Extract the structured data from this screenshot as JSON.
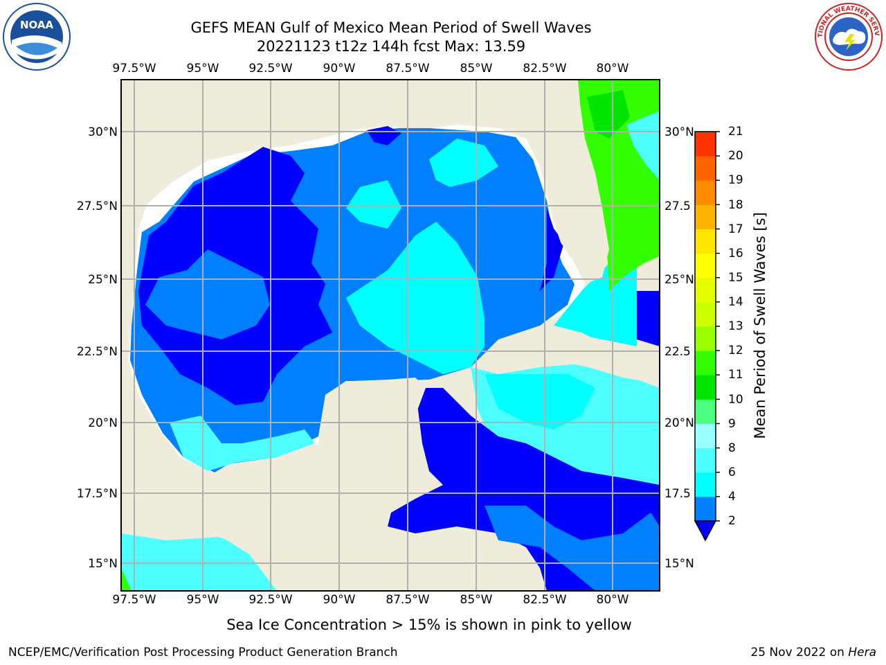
{
  "title": {
    "line1": "GEFS MEAN Gulf of Mexico Mean Period of Swell Waves",
    "line2": "20221123 t12z 144h fcst   Max: 13.59"
  },
  "axes": {
    "longitudes": [
      "97.5°W",
      "95°W",
      "92.5°W",
      "90°W",
      "87.5°W",
      "85°W",
      "82.5°W",
      "80°W"
    ],
    "latitudes_left": [
      "30°N",
      "27.5°N",
      "25°N",
      "22.5°N",
      "20°N",
      "17.5°N",
      "15°N"
    ],
    "latitudes_right": [
      "30°N",
      "27.5",
      "25°N",
      "22.5",
      "20°N",
      "17.5",
      "15°N"
    ]
  },
  "colorbar": {
    "title": "Mean Period of Swell Waves [s]",
    "ticks": [
      "21",
      "20",
      "19",
      "18",
      "17",
      "16",
      "15",
      "14",
      "13",
      "12",
      "11",
      "10",
      "9",
      "8",
      "6",
      "4",
      "2"
    ],
    "colors": [
      "#0000ff",
      "#0080ff",
      "#00ffff",
      "#4dffff",
      "#99ffff",
      "#4dff80",
      "#00e600",
      "#33ff00",
      "#99ff00",
      "#ccff00",
      "#e6ff00",
      "#ffff00",
      "#ffe600",
      "#ffb400",
      "#ff8c00",
      "#ff6400",
      "#ff3200",
      "#ff0000"
    ]
  },
  "map_colors": {
    "land": "#efecdc",
    "ocean_2_4": "#0000ff",
    "ocean_4_6": "#0080ff",
    "ocean_6_8": "#00ffff",
    "ocean_8_9": "#4dffff",
    "ocean_10_11": "#33ff00",
    "ocean_11_12": "#00e600",
    "grid": "#b0b0b0"
  },
  "note": "Sea Ice Concentration > 15% is shown in pink to yellow",
  "footer": {
    "left": "NCEP/EMC/Verification Post Processing Product Generation Branch",
    "right_date": "25 Nov 2022 on ",
    "right_host": "Hera"
  },
  "logos": {
    "left": "NOAA",
    "right": "NATIONAL WEATHER SERVICE"
  }
}
